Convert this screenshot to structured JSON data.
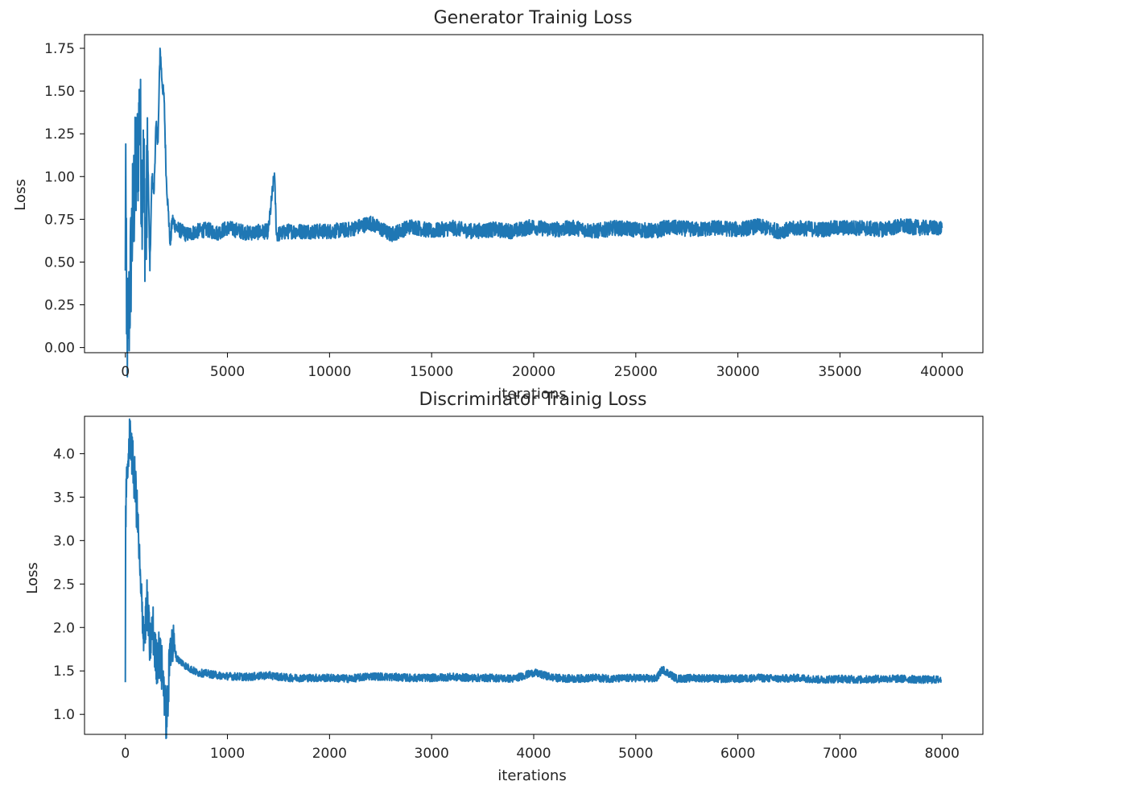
{
  "chart_data": [
    {
      "type": "line",
      "title": "Generator Trainig Loss",
      "xlabel": "iterations",
      "ylabel": "Loss",
      "xlim": [
        -2000,
        42000
      ],
      "ylim": [
        -0.03,
        1.83
      ],
      "xticks": [
        0,
        5000,
        10000,
        15000,
        20000,
        25000,
        30000,
        35000,
        40000
      ],
      "yticks": [
        0.0,
        0.25,
        0.5,
        0.75,
        1.0,
        1.25,
        1.5,
        1.75
      ],
      "xtick_labels": [
        "0",
        "5000",
        "10000",
        "15000",
        "20000",
        "25000",
        "30000",
        "35000",
        "40000"
      ],
      "ytick_labels": [
        "0.00",
        "0.25",
        "0.50",
        "0.75",
        "1.00",
        "1.25",
        "1.50",
        "1.75"
      ],
      "grid": false,
      "color": "#1f77b4",
      "series": [
        {
          "x": [
            0,
            20,
            60,
            120,
            200,
            300,
            400,
            500,
            600,
            700,
            800,
            900,
            1000,
            1100,
            1200,
            1300,
            1400,
            1500,
            1600,
            1700,
            1800,
            1900,
            2000,
            2100,
            2200,
            2300,
            2500,
            3000,
            3500,
            4000,
            4500,
            5000,
            6000,
            7000,
            7300,
            7400,
            8000,
            9000,
            10000,
            11000,
            12000,
            13000,
            14000,
            15000,
            16000,
            17000,
            18000,
            19000,
            20000,
            20200,
            21000,
            22000,
            23000,
            24000,
            25000,
            26000,
            26400,
            27000,
            28000,
            29000,
            30000,
            31000,
            32000,
            33000,
            34000,
            35000,
            36000,
            37000,
            38000,
            39000,
            40000
          ],
          "y": [
            0.45,
            1.19,
            0.08,
            0.1,
            0.25,
            0.6,
            0.85,
            1.0,
            1.1,
            1.42,
            0.95,
            1.05,
            0.55,
            1.15,
            0.45,
            1.0,
            0.9,
            1.3,
            1.2,
            1.75,
            1.55,
            1.45,
            1.0,
            0.8,
            0.6,
            0.75,
            0.7,
            0.66,
            0.68,
            0.69,
            0.67,
            0.7,
            0.67,
            0.68,
            1.02,
            0.66,
            0.68,
            0.68,
            0.68,
            0.69,
            0.73,
            0.66,
            0.71,
            0.68,
            0.7,
            0.68,
            0.69,
            0.68,
            0.71,
            0.7,
            0.69,
            0.7,
            0.68,
            0.7,
            0.69,
            0.68,
            0.7,
            0.7,
            0.69,
            0.7,
            0.69,
            0.71,
            0.68,
            0.7,
            0.69,
            0.7,
            0.7,
            0.69,
            0.71,
            0.7,
            0.7
          ]
        }
      ]
    },
    {
      "type": "line",
      "title": "Discriminator Trainig Loss",
      "xlabel": "iterations",
      "ylabel": "Loss",
      "xlim": [
        -400,
        8400
      ],
      "ylim": [
        0.77,
        4.43
      ],
      "xticks": [
        0,
        1000,
        2000,
        3000,
        4000,
        5000,
        6000,
        7000,
        8000
      ],
      "yticks": [
        1.0,
        1.5,
        2.0,
        2.5,
        3.0,
        3.5,
        4.0
      ],
      "xtick_labels": [
        "0",
        "1000",
        "2000",
        "3000",
        "4000",
        "5000",
        "6000",
        "7000",
        "8000"
      ],
      "ytick_labels": [
        "1.0",
        "1.5",
        "2.0",
        "2.5",
        "3.0",
        "3.5",
        "4.0"
      ],
      "grid": false,
      "color": "#1f77b4",
      "series": [
        {
          "x": [
            0,
            3,
            10,
            30,
            50,
            70,
            100,
            130,
            150,
            170,
            190,
            210,
            240,
            270,
            300,
            330,
            360,
            380,
            400,
            420,
            440,
            460,
            480,
            500,
            550,
            600,
            700,
            800,
            900,
            1000,
            1200,
            1400,
            1600,
            1800,
            2000,
            2200,
            2400,
            2600,
            2800,
            3000,
            3200,
            3400,
            3600,
            3800,
            4000,
            4200,
            4400,
            4600,
            4800,
            5000,
            5200,
            5260,
            5400,
            5600,
            5800,
            6000,
            6200,
            6400,
            6600,
            6800,
            7000,
            7200,
            7400,
            7600,
            7800,
            7990
          ],
          "y": [
            1.37,
            3.4,
            3.5,
            4.0,
            4.25,
            3.9,
            3.6,
            3.0,
            2.4,
            2.1,
            1.9,
            2.3,
            1.8,
            2.0,
            1.6,
            1.7,
            1.5,
            1.3,
            0.95,
            1.2,
            1.85,
            1.75,
            1.8,
            1.65,
            1.6,
            1.55,
            1.48,
            1.47,
            1.45,
            1.44,
            1.43,
            1.45,
            1.42,
            1.42,
            1.42,
            1.41,
            1.44,
            1.43,
            1.42,
            1.42,
            1.43,
            1.42,
            1.42,
            1.41,
            1.48,
            1.42,
            1.41,
            1.42,
            1.41,
            1.42,
            1.41,
            1.52,
            1.41,
            1.42,
            1.41,
            1.41,
            1.42,
            1.41,
            1.42,
            1.4,
            1.41,
            1.4,
            1.41,
            1.41,
            1.4,
            1.4
          ]
        }
      ]
    }
  ]
}
